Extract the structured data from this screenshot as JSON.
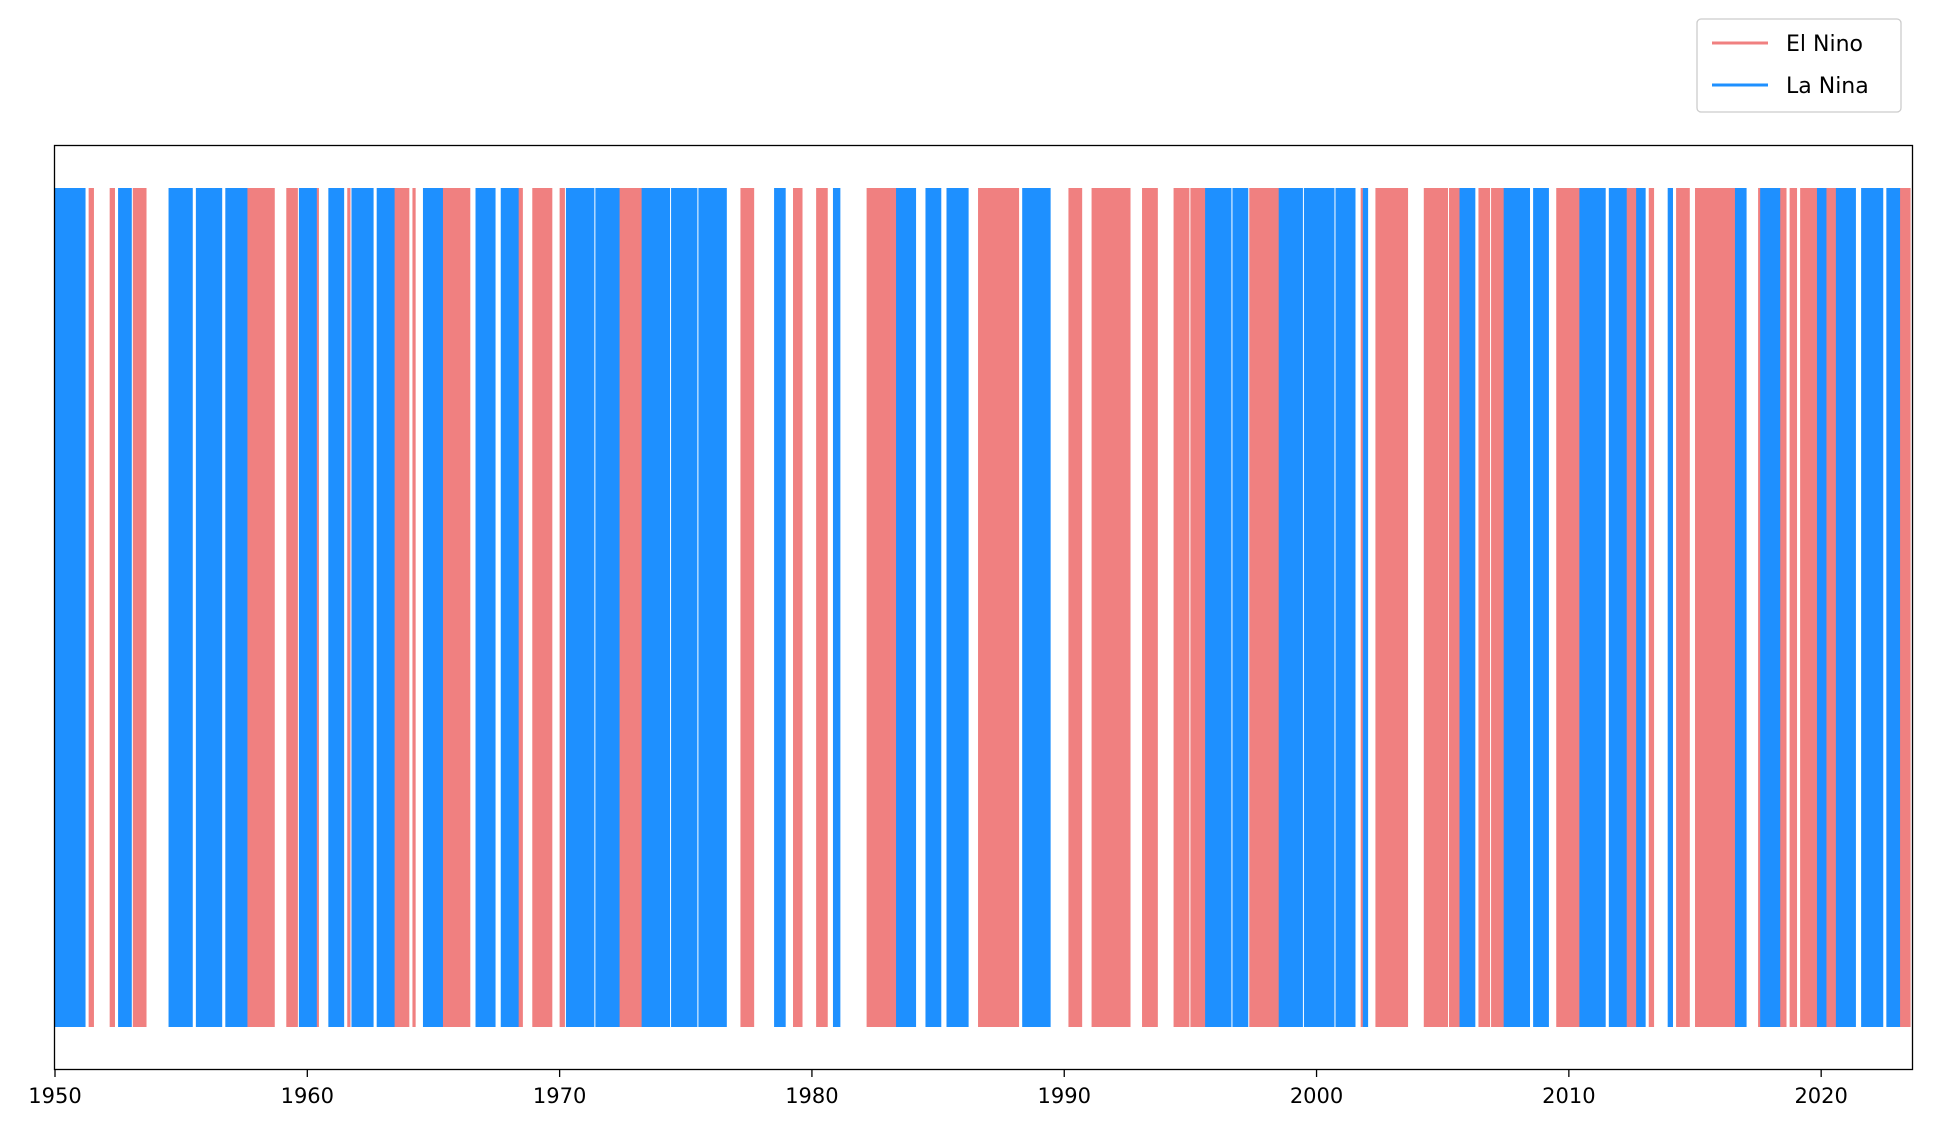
{
  "chart_data": {
    "type": "bar",
    "title": "",
    "xlabel": "",
    "ylabel": "",
    "xlim": [
      1950,
      2023.6
    ],
    "x_ticks": [
      "1950",
      "1960",
      "1970",
      "1980",
      "1990",
      "2000",
      "2010",
      "2020"
    ],
    "y_ticks": [],
    "grid": false,
    "legend_position": "top-right, outside plot area",
    "series": [
      {
        "name": "El Nino",
        "color": "#F08080",
        "periods": [
          [
            "1951-05",
            "1951-07"
          ],
          [
            "1952-03",
            "1952-05"
          ],
          [
            "1953-02",
            "1953-08"
          ],
          [
            "1957-03",
            "1958-09"
          ],
          [
            "1959-03",
            "1959-08"
          ],
          [
            "1960-05",
            "1960-06"
          ],
          [
            "1961-08",
            "1961-09"
          ],
          [
            "1963-05",
            "1964-01"
          ],
          [
            "1964-03",
            "1964-04"
          ],
          [
            "1965-04",
            "1966-06"
          ],
          [
            "1968-05",
            "1968-07"
          ],
          [
            "1968-12",
            "1969-09"
          ],
          [
            "1970-01",
            "1970-03"
          ],
          [
            "1972-04",
            "1973-04"
          ],
          [
            "1977-03",
            "1977-09"
          ],
          [
            "1979-04",
            "1979-08"
          ],
          [
            "1980-03",
            "1980-08"
          ],
          [
            "1982-03",
            "1983-09"
          ],
          [
            "1986-08",
            "1988-03"
          ],
          [
            "1990-03",
            "1990-09"
          ],
          [
            "1991-02",
            "1992-08"
          ],
          [
            "1993-02",
            "1993-09"
          ],
          [
            "1994-05",
            "1994-12"
          ],
          [
            "1995-01",
            "1995-11"
          ],
          [
            "1997-05",
            "1998-09"
          ],
          [
            "2001-10",
            "2001-12"
          ],
          [
            "2002-05",
            "2003-08"
          ],
          [
            "2004-04",
            "2005-03"
          ],
          [
            "2005-04",
            "2005-11"
          ],
          [
            "2006-06",
            "2006-11"
          ],
          [
            "2006-12",
            "2007-06"
          ],
          [
            "2007-09",
            "2007-12"
          ],
          [
            "2009-07",
            "2010-11"
          ],
          [
            "2012-04",
            "2012-09"
          ],
          [
            "2013-03",
            "2013-05"
          ],
          [
            "2014-04",
            "2014-10"
          ],
          [
            "2015-01",
            "2016-09"
          ],
          [
            "2017-07",
            "2017-10"
          ],
          [
            "2018-05",
            "2018-08"
          ],
          [
            "2018-10",
            "2019-01"
          ],
          [
            "2019-03",
            "2019-11"
          ],
          [
            "2020-03",
            "2020-08"
          ],
          [
            "2023-01",
            "2023-07"
          ]
        ]
      },
      {
        "name": "La Nina",
        "color": "#1E90FF",
        "periods": [
          [
            "1950-01",
            "1951-03"
          ],
          [
            "1952-07",
            "1953-01"
          ],
          [
            "1954-07",
            "1955-06"
          ],
          [
            "1955-08",
            "1956-08"
          ],
          [
            "1956-10",
            "1957-08"
          ],
          [
            "1959-09",
            "1960-05"
          ],
          [
            "1960-11",
            "1961-06"
          ],
          [
            "1961-10",
            "1962-08"
          ],
          [
            "1962-10",
            "1963-06"
          ],
          [
            "1964-08",
            "1965-05"
          ],
          [
            "1966-09",
            "1967-06"
          ],
          [
            "1967-09",
            "1968-05"
          ],
          [
            "1970-04",
            "1971-05"
          ],
          [
            "1971-06",
            "1972-05"
          ],
          [
            "1973-04",
            "1974-05"
          ],
          [
            "1974-06",
            "1975-06"
          ],
          [
            "1975-07",
            "1976-08"
          ],
          [
            "1978-07",
            "1978-12"
          ],
          [
            "1980-11",
            "1981-02"
          ],
          [
            "1983-05",
            "1984-02"
          ],
          [
            "1984-07",
            "1985-02"
          ],
          [
            "1985-05",
            "1986-03"
          ],
          [
            "1988-05",
            "1989-06"
          ],
          [
            "1995-08",
            "1996-08"
          ],
          [
            "1996-09",
            "1997-04"
          ],
          [
            "1998-07",
            "1999-06"
          ],
          [
            "1999-07",
            "2000-09"
          ],
          [
            "2000-10",
            "2001-07"
          ],
          [
            "2001-11",
            "2002-01"
          ],
          [
            "2005-09",
            "2006-04"
          ],
          [
            "2007-06",
            "2008-06"
          ],
          [
            "2008-08",
            "2009-03"
          ],
          [
            "2010-06",
            "2011-06"
          ],
          [
            "2011-08",
            "2012-04"
          ],
          [
            "2012-09",
            "2013-01"
          ],
          [
            "2013-12",
            "2014-02"
          ],
          [
            "2016-08",
            "2017-01"
          ],
          [
            "2017-08",
            "2018-05"
          ],
          [
            "2019-11",
            "2020-03"
          ],
          [
            "2020-08",
            "2021-05"
          ],
          [
            "2021-08",
            "2022-06"
          ],
          [
            "2022-08",
            "2023-02"
          ]
        ]
      }
    ]
  }
}
